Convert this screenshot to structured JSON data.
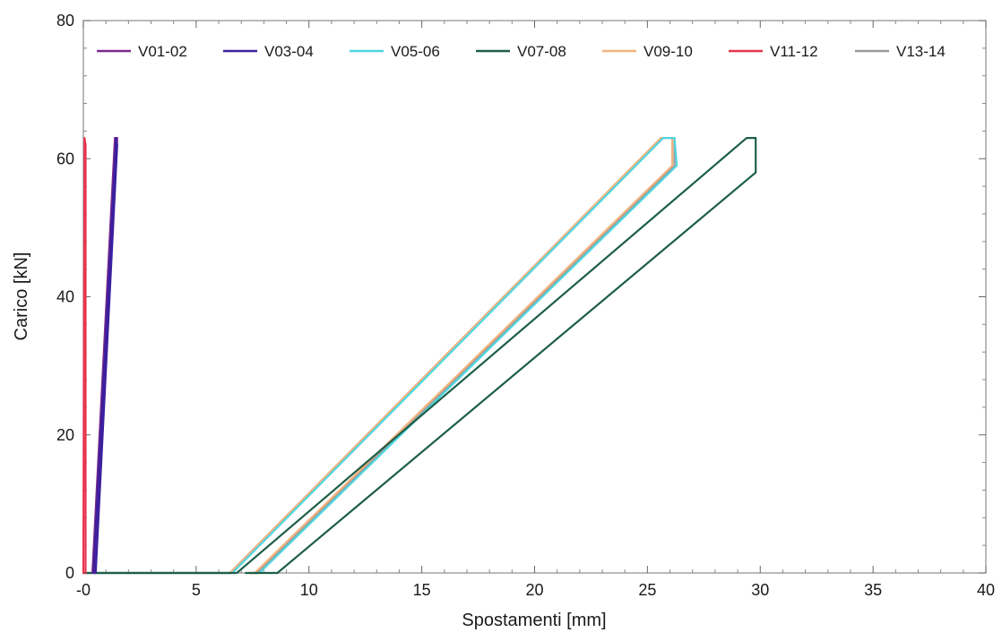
{
  "chart_data": {
    "type": "line",
    "title": "",
    "xlabel": "Spostamenti [mm]",
    "ylabel": "Carico [kN]",
    "xlim": [
      0,
      40
    ],
    "ylim": [
      0,
      80
    ],
    "xticks": [
      0,
      5,
      10,
      15,
      20,
      25,
      30,
      35,
      40
    ],
    "xtick_labels": [
      "-0",
      "5",
      "10",
      "15",
      "20",
      "25",
      "30",
      "35",
      "40"
    ],
    "yticks": [
      0,
      20,
      40,
      60,
      80
    ],
    "ytick_labels": [
      "0",
      "20",
      "40",
      "60",
      "80"
    ],
    "grid": false,
    "legend_position": "top",
    "series": [
      {
        "name": "V01-02",
        "color": "#7b2a8c",
        "points": [
          [
            0.4,
            0
          ],
          [
            1.4,
            63
          ],
          [
            1.5,
            63
          ],
          [
            0.5,
            0
          ]
        ]
      },
      {
        "name": "V03-04",
        "color": "#3c1f9e",
        "points": [
          [
            0.45,
            0
          ],
          [
            1.45,
            63
          ],
          [
            1.5,
            62
          ],
          [
            0.55,
            0
          ]
        ]
      },
      {
        "name": "V05-06",
        "color": "#4fd6e0",
        "points": [
          [
            0,
            0
          ],
          [
            6.6,
            0
          ],
          [
            25.7,
            63
          ],
          [
            26.2,
            63
          ],
          [
            26.3,
            59
          ],
          [
            7.8,
            0
          ],
          [
            7.5,
            0
          ]
        ]
      },
      {
        "name": "V07-08",
        "color": "#1d5e48",
        "points": [
          [
            0,
            0
          ],
          [
            6.8,
            0
          ],
          [
            29.4,
            63
          ],
          [
            29.8,
            63
          ],
          [
            29.8,
            58
          ],
          [
            8.6,
            0
          ],
          [
            7.2,
            0
          ]
        ]
      },
      {
        "name": "V09-10",
        "color": "#f2b27e",
        "points": [
          [
            0,
            0
          ],
          [
            6.5,
            0
          ],
          [
            25.6,
            63
          ],
          [
            26.1,
            63
          ],
          [
            26.1,
            59
          ],
          [
            7.6,
            0
          ],
          [
            7.3,
            0
          ]
        ]
      },
      {
        "name": "V11-12",
        "color": "#e8364f",
        "points": [
          [
            0,
            0
          ],
          [
            0.05,
            63
          ],
          [
            0.1,
            62
          ],
          [
            0.1,
            0
          ]
        ]
      },
      {
        "name": "V13-14",
        "color": "#9a9a9a",
        "points": [
          [
            0,
            0
          ],
          [
            6.5,
            0
          ],
          [
            25.6,
            63
          ],
          [
            26.2,
            63
          ],
          [
            26.2,
            59
          ],
          [
            7.7,
            0
          ],
          [
            7.4,
            0
          ]
        ]
      }
    ]
  }
}
